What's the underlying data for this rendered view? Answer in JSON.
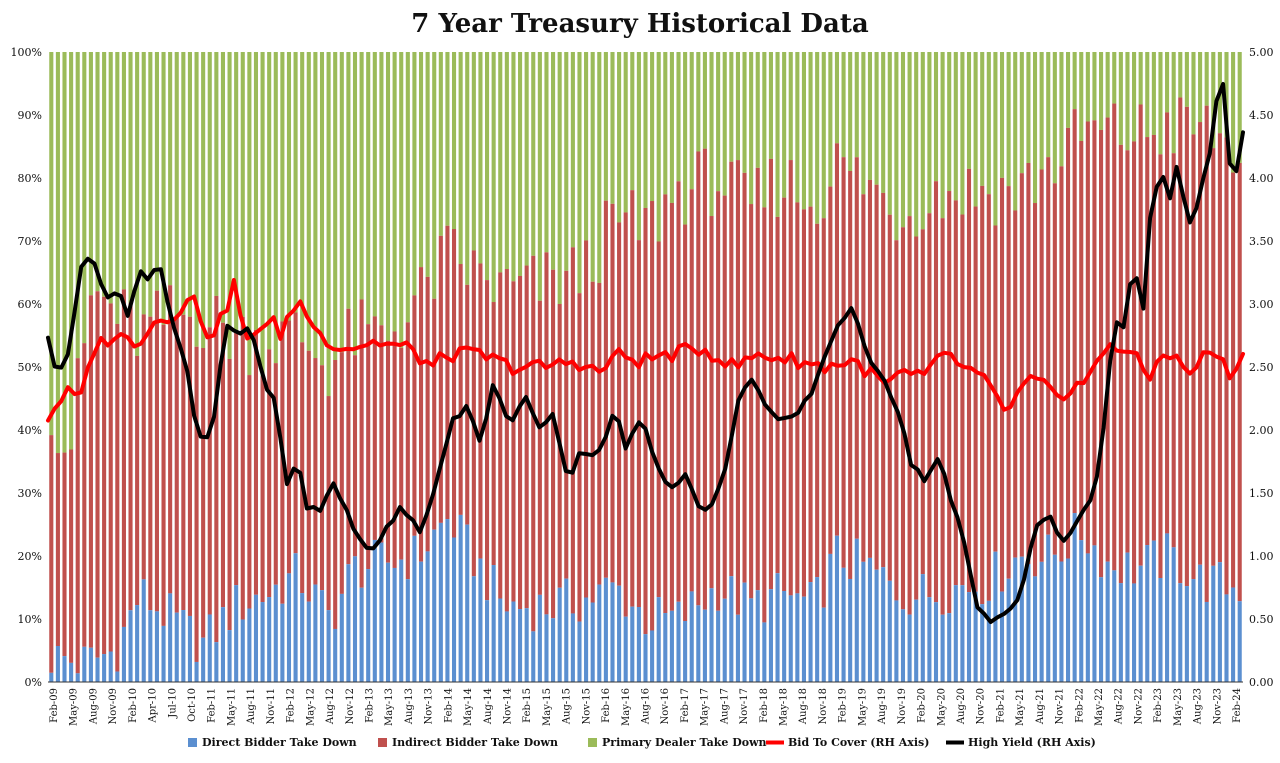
{
  "chart_data": {
    "type": "bar",
    "stacked": true,
    "title": "7 Year Treasury Historical Data",
    "left_axis": {
      "ticks": [
        "0%",
        "10%",
        "20%",
        "30%",
        "40%",
        "50%",
        "60%",
        "70%",
        "80%",
        "90%",
        "100%"
      ],
      "range": [
        0,
        100
      ]
    },
    "right_axis": {
      "ticks": [
        "0.00",
        "0.50",
        "1.00",
        "1.50",
        "2.00",
        "2.50",
        "3.00",
        "3.50",
        "4.00",
        "4.50",
        "5.00"
      ],
      "range": [
        0,
        5
      ]
    },
    "x_start": "2009-02",
    "x_end": "2024-02",
    "x_tick_labels": [
      "Feb-09",
      "May-09",
      "Aug-09",
      "Nov-09",
      "Feb-10",
      "Apr-10",
      "Jul-10",
      "Oct-10",
      "Feb-11",
      "May-11",
      "Aug-11",
      "Nov-11",
      "Feb-12",
      "May-12",
      "Aug-12",
      "Nov-12",
      "Feb-13",
      "May-13",
      "Aug-13",
      "Nov-13",
      "Feb-14",
      "May-14",
      "Aug-14",
      "Nov-14",
      "Feb-15",
      "May-15",
      "Aug-15",
      "Nov-15",
      "Feb-16",
      "May-16",
      "Aug-16",
      "Nov-16",
      "Feb-17",
      "May-17",
      "Aug-17",
      "Nov-17",
      "Feb-18",
      "May-18",
      "Aug-18",
      "Nov-18",
      "Feb-19",
      "May-19",
      "Aug-19",
      "Nov-19",
      "Feb-20",
      "May-20",
      "Aug-20",
      "Nov-20",
      "Feb-21",
      "May-21",
      "Aug-21",
      "Nov-21",
      "Feb-22",
      "May-22",
      "Aug-22",
      "Nov-22",
      "Feb-23",
      "May-23",
      "Aug-23",
      "Nov-23",
      "Feb-24"
    ],
    "series": [
      {
        "name": "Direct Bidder Take Down",
        "axis": "left",
        "kind": "stacked-bar",
        "color": "#5b8fd0",
        "anchors": [
          [
            2009.08,
            4
          ],
          [
            2009.5,
            3
          ],
          [
            2009.9,
            5
          ],
          [
            2010.2,
            14
          ],
          [
            2010.6,
            10
          ],
          [
            2011.0,
            6
          ],
          [
            2011.4,
            12
          ],
          [
            2011.8,
            14
          ],
          [
            2012.2,
            17
          ],
          [
            2012.6,
            10
          ],
          [
            2012.9,
            18
          ],
          [
            2013.3,
            19
          ],
          [
            2013.7,
            20
          ],
          [
            2014.1,
            26
          ],
          [
            2014.4,
            20
          ],
          [
            2014.8,
            12
          ],
          [
            2015.3,
            12
          ],
          [
            2015.8,
            13
          ],
          [
            2016.2,
            15
          ],
          [
            2016.6,
            10
          ],
          [
            2017.0,
            10
          ],
          [
            2017.5,
            15
          ],
          [
            2017.9,
            12
          ],
          [
            2018.3,
            14
          ],
          [
            2018.7,
            12
          ],
          [
            2019.0,
            20
          ],
          [
            2019.4,
            18
          ],
          [
            2019.8,
            14
          ],
          [
            2020.1,
            14
          ],
          [
            2020.5,
            15
          ],
          [
            2020.9,
            16
          ],
          [
            2021.3,
            20
          ],
          [
            2021.7,
            20
          ],
          [
            2022.1,
            24
          ],
          [
            2022.4,
            19
          ],
          [
            2022.8,
            18
          ],
          [
            2023.2,
            20
          ],
          [
            2023.6,
            16
          ],
          [
            2024.1,
            15
          ]
        ]
      },
      {
        "name": "Indirect Bidder Take Down",
        "axis": "left",
        "kind": "stacked-bar",
        "color": "#c0504d",
        "anchors_top": [
          [
            2009.08,
            45
          ],
          [
            2009.3,
            36
          ],
          [
            2009.6,
            62
          ],
          [
            2010.2,
            55
          ],
          [
            2010.6,
            58
          ],
          [
            2011.0,
            58
          ],
          [
            2011.4,
            55
          ],
          [
            2011.8,
            54
          ],
          [
            2012.2,
            55
          ],
          [
            2012.6,
            50
          ],
          [
            2012.9,
            55
          ],
          [
            2013.3,
            55
          ],
          [
            2013.7,
            60
          ],
          [
            2014.1,
            68
          ],
          [
            2014.4,
            65
          ],
          [
            2014.8,
            62
          ],
          [
            2015.3,
            63
          ],
          [
            2015.8,
            65
          ],
          [
            2016.2,
            73
          ],
          [
            2016.6,
            72
          ],
          [
            2017.0,
            78
          ],
          [
            2017.5,
            80
          ],
          [
            2017.9,
            75
          ],
          [
            2018.3,
            80
          ],
          [
            2018.7,
            76
          ],
          [
            2019.0,
            82
          ],
          [
            2019.4,
            79
          ],
          [
            2019.8,
            74
          ],
          [
            2020.1,
            77
          ],
          [
            2020.5,
            78
          ],
          [
            2020.9,
            78
          ],
          [
            2021.3,
            78
          ],
          [
            2021.7,
            82
          ],
          [
            2022.1,
            87
          ],
          [
            2022.4,
            87
          ],
          [
            2022.8,
            87
          ],
          [
            2023.2,
            88
          ],
          [
            2023.6,
            88
          ],
          [
            2024.1,
            84
          ]
        ]
      },
      {
        "name": "Primary Dealer Take Down",
        "axis": "left",
        "kind": "stacked-bar",
        "color": "#9bbb59"
      },
      {
        "name": "Bid To Cover (RH Axis)",
        "axis": "right",
        "kind": "line",
        "color": "#ff0000",
        "anchors": [
          [
            2009.08,
            2.1
          ],
          [
            2009.3,
            2.3
          ],
          [
            2009.5,
            2.25
          ],
          [
            2009.65,
            2.65
          ],
          [
            2009.9,
            2.75
          ],
          [
            2010.2,
            2.7
          ],
          [
            2010.4,
            2.85
          ],
          [
            2010.6,
            2.9
          ],
          [
            2010.9,
            3.05
          ],
          [
            2011.1,
            2.75
          ],
          [
            2011.3,
            2.9
          ],
          [
            2011.4,
            3.2
          ],
          [
            2011.6,
            2.65
          ],
          [
            2011.9,
            2.95
          ],
          [
            2012.0,
            2.7
          ],
          [
            2012.2,
            3.05
          ],
          [
            2012.5,
            2.75
          ],
          [
            2012.8,
            2.65
          ],
          [
            2013.2,
            2.7
          ],
          [
            2013.6,
            2.65
          ],
          [
            2013.9,
            2.5
          ],
          [
            2014.1,
            2.6
          ],
          [
            2014.5,
            2.6
          ],
          [
            2014.9,
            2.5
          ],
          [
            2015.3,
            2.5
          ],
          [
            2015.7,
            2.55
          ],
          [
            2016.0,
            2.45
          ],
          [
            2016.2,
            2.6
          ],
          [
            2016.5,
            2.55
          ],
          [
            2016.9,
            2.6
          ],
          [
            2017.3,
            2.65
          ],
          [
            2017.7,
            2.5
          ],
          [
            2018.0,
            2.6
          ],
          [
            2018.5,
            2.55
          ],
          [
            2018.8,
            2.5
          ],
          [
            2019.2,
            2.55
          ],
          [
            2019.6,
            2.35
          ],
          [
            2019.8,
            2.45
          ],
          [
            2020.1,
            2.4
          ],
          [
            2020.3,
            2.65
          ],
          [
            2020.6,
            2.45
          ],
          [
            2020.9,
            2.4
          ],
          [
            2021.1,
            2.1
          ],
          [
            2021.4,
            2.4
          ],
          [
            2021.7,
            2.3
          ],
          [
            2021.9,
            2.3
          ],
          [
            2022.2,
            2.45
          ],
          [
            2022.4,
            2.7
          ],
          [
            2022.7,
            2.6
          ],
          [
            2022.9,
            2.4
          ],
          [
            2023.1,
            2.65
          ],
          [
            2023.4,
            2.45
          ],
          [
            2023.7,
            2.65
          ],
          [
            2023.9,
            2.45
          ],
          [
            2024.1,
            2.58
          ]
        ]
      },
      {
        "name": "High Yield (RH Axis)",
        "axis": "right",
        "kind": "line",
        "color": "#000000",
        "anchors": [
          [
            2009.08,
            2.75
          ],
          [
            2009.2,
            2.4
          ],
          [
            2009.4,
            2.7
          ],
          [
            2009.5,
            3.3
          ],
          [
            2009.7,
            3.35
          ],
          [
            2009.9,
            3.05
          ],
          [
            2010.05,
            3.1
          ],
          [
            2010.2,
            2.85
          ],
          [
            2010.3,
            3.3
          ],
          [
            2010.45,
            3.2
          ],
          [
            2010.6,
            3.35
          ],
          [
            2010.8,
            2.8
          ],
          [
            2011.0,
            2.45
          ],
          [
            2011.1,
            2.0
          ],
          [
            2011.25,
            1.9
          ],
          [
            2011.4,
            2.2
          ],
          [
            2011.5,
            2.85
          ],
          [
            2011.7,
            2.75
          ],
          [
            2011.85,
            2.85
          ],
          [
            2012.0,
            2.45
          ],
          [
            2012.2,
            2.2
          ],
          [
            2012.35,
            1.55
          ],
          [
            2012.5,
            1.8
          ],
          [
            2012.6,
            1.4
          ],
          [
            2012.8,
            1.35
          ],
          [
            2013.0,
            1.6
          ],
          [
            2013.3,
            1.15
          ],
          [
            2013.5,
            1.05
          ],
          [
            2013.7,
            1.2
          ],
          [
            2013.9,
            1.4
          ],
          [
            2014.2,
            1.2
          ],
          [
            2014.4,
            1.55
          ],
          [
            2014.6,
            2.05
          ],
          [
            2014.8,
            2.2
          ],
          [
            2015.0,
            1.9
          ],
          [
            2015.2,
            2.4
          ],
          [
            2015.4,
            2.0
          ],
          [
            2015.6,
            2.3
          ],
          [
            2015.8,
            2.0
          ],
          [
            2016.0,
            2.15
          ],
          [
            2016.2,
            1.6
          ],
          [
            2016.4,
            1.85
          ],
          [
            2016.6,
            1.8
          ],
          [
            2016.85,
            2.15
          ],
          [
            2017.0,
            1.85
          ],
          [
            2017.2,
            2.1
          ],
          [
            2017.4,
            1.75
          ],
          [
            2017.6,
            1.55
          ],
          [
            2017.8,
            1.65
          ],
          [
            2018.05,
            1.35
          ],
          [
            2018.2,
            1.4
          ],
          [
            2018.4,
            1.8
          ],
          [
            2018.55,
            2.25
          ],
          [
            2018.7,
            2.45
          ],
          [
            2018.9,
            2.2
          ],
          [
            2019.1,
            2.05
          ],
          [
            2019.3,
            2.1
          ],
          [
            2019.5,
            2.25
          ],
          [
            2019.7,
            2.55
          ],
          [
            2019.9,
            2.85
          ],
          [
            2020.1,
            2.95
          ],
          [
            2020.3,
            2.6
          ],
          [
            2020.5,
            2.45
          ],
          [
            2020.7,
            2.2
          ],
          [
            2020.9,
            1.75
          ],
          [
            2021.1,
            1.6
          ],
          [
            2021.3,
            1.8
          ],
          [
            2021.4,
            1.5
          ],
          [
            2021.6,
            1.2
          ],
          [
            2021.8,
            0.6
          ],
          [
            2022.0,
            0.5
          ],
          [
            2022.2,
            0.55
          ],
          [
            2022.4,
            0.65
          ],
          [
            2022.6,
            1.25
          ],
          [
            2022.8,
            1.3
          ],
          [
            2023.0,
            1.1
          ],
          [
            2023.2,
            1.3
          ],
          [
            2023.4,
            1.5
          ],
          [
            2023.5,
            1.8
          ],
          [
            2023.7,
            2.9
          ],
          [
            2023.8,
            2.8
          ],
          [
            2023.95,
            3.3
          ],
          [
            2024.1,
            2.9
          ],
          [
            2024.2,
            3.9
          ],
          [
            2024.35,
            4.0
          ],
          [
            2024.45,
            3.85
          ],
          [
            2024.55,
            4.1
          ],
          [
            2024.7,
            3.6
          ],
          [
            2024.85,
            3.85
          ],
          [
            2025.0,
            4.2
          ],
          [
            2025.15,
            4.9
          ],
          [
            2025.3,
            3.9
          ],
          [
            2025.45,
            4.35
          ]
        ]
      }
    ],
    "legend": {
      "position": "bottom"
    },
    "grid": false
  }
}
